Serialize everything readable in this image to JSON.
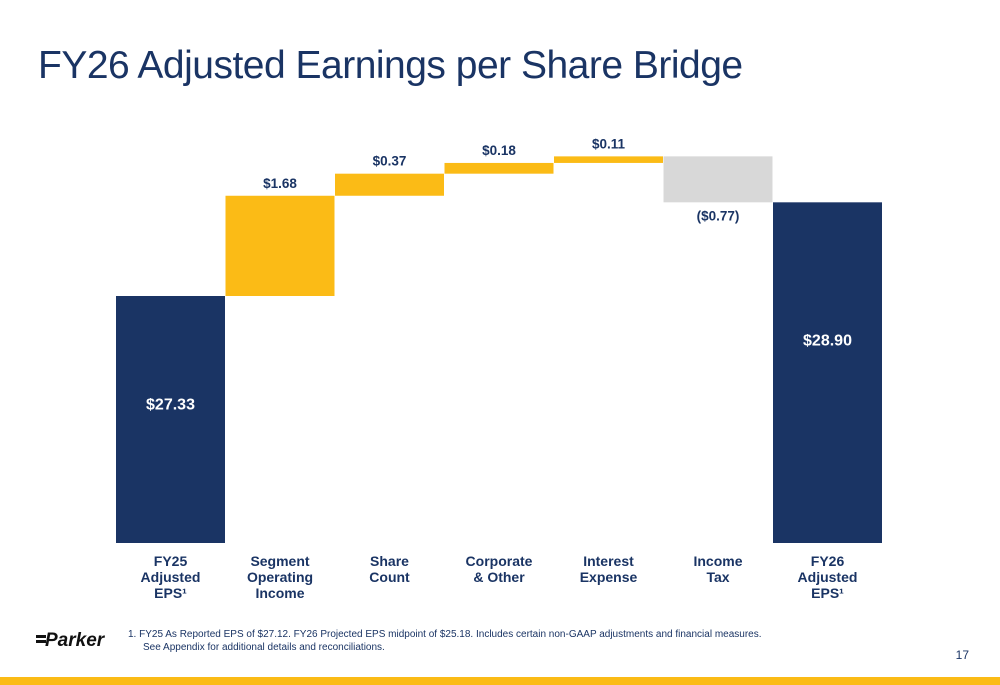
{
  "title": "FY26 Adjusted Earnings per Share Bridge",
  "chart_data": {
    "type": "waterfall",
    "categories": [
      [
        "FY25",
        "Adjusted",
        "EPS¹"
      ],
      [
        "Segment",
        "Operating",
        "Income"
      ],
      [
        "Share",
        "Count"
      ],
      [
        "Corporate",
        "& Other"
      ],
      [
        "Interest",
        "Expense"
      ],
      [
        "Income",
        "Tax"
      ],
      [
        "FY26",
        "Adjusted",
        "EPS¹"
      ]
    ],
    "values": [
      27.33,
      1.68,
      0.37,
      0.18,
      0.11,
      -0.77,
      28.9
    ],
    "kinds": [
      "total",
      "delta",
      "delta",
      "delta",
      "delta",
      "delta",
      "total"
    ],
    "labels": [
      "$27.33",
      "$1.68",
      "$0.37",
      "$0.18",
      "$0.11",
      "($0.77)",
      "$28.90"
    ],
    "colors": {
      "total": "#1a3464",
      "increase": "#fbbb16",
      "decrease": "#d8d8d8",
      "total_label": "#ffffff",
      "delta_label": "#1a3464"
    }
  },
  "footnote": {
    "line1": "1. FY25 As Reported EPS of $27.12. FY26 Projected EPS midpoint of $25.18. Includes certain non-GAAP adjustments and financial measures.",
    "line2": "See Appendix for additional details and reconciliations."
  },
  "logo_text": "Parker",
  "page_number": "17"
}
